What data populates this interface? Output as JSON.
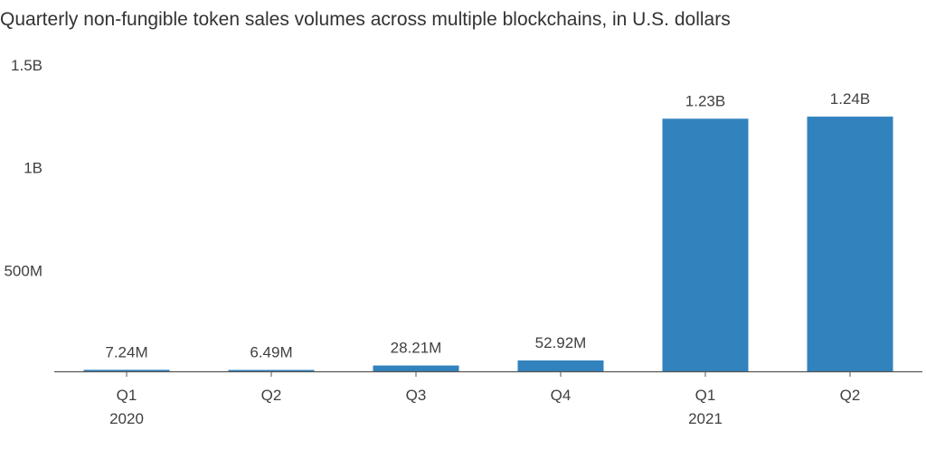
{
  "title": "Quarterly non-fungible token sales volumes across multiple blockchains, in U.S. dollars",
  "colors": {
    "bar": "#3182bd",
    "axis": "#555555",
    "text": "#404040"
  },
  "chart_data": {
    "type": "bar",
    "title": "Quarterly non-fungible token sales volumes across multiple blockchains, in U.S. dollars",
    "xlabel": "",
    "ylabel": "",
    "categories": [
      "Q1 2020",
      "Q2 2020",
      "Q3 2020",
      "Q4 2020",
      "Q1 2021",
      "Q2 2021"
    ],
    "x_tick_labels": [
      {
        "quarter": "Q1",
        "year": "2020"
      },
      {
        "quarter": "Q2",
        "year": ""
      },
      {
        "quarter": "Q3",
        "year": ""
      },
      {
        "quarter": "Q4",
        "year": ""
      },
      {
        "quarter": "Q1",
        "year": "2021"
      },
      {
        "quarter": "Q2",
        "year": ""
      }
    ],
    "values": [
      7240000,
      6490000,
      28210000,
      52920000,
      1230000000,
      1240000000
    ],
    "data_labels": [
      "7.24M",
      "6.49M",
      "28.21M",
      "52.92M",
      "1.23B",
      "1.24B"
    ],
    "ylim": [
      0,
      1500000000
    ],
    "y_ticks": [
      {
        "value": 500000000,
        "label": "500M"
      },
      {
        "value": 1000000000,
        "label": "1B"
      },
      {
        "value": 1500000000,
        "label": "1.5B"
      }
    ],
    "grid": false,
    "legend": "none"
  }
}
